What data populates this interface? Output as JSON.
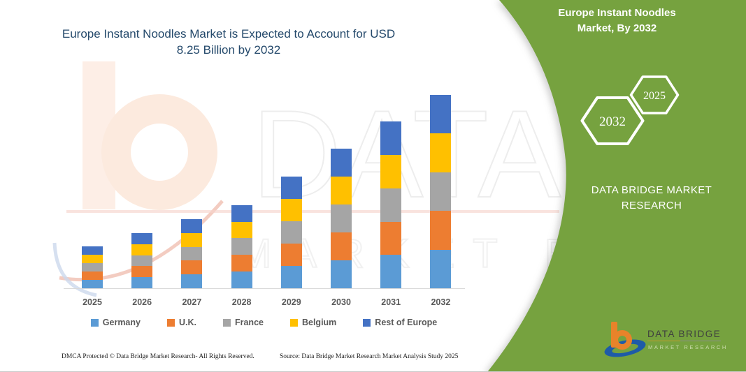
{
  "card": {
    "title": "Europe Instant Noodles Market is Expected to Account for USD 8.25 Billion by 2032",
    "footer_left": "DMCA Protected © Data Bridge Market Research-  All Rights Reserved.",
    "footer_source": "Source: Data Bridge Market Research  Market Analysis Study 2025"
  },
  "watermark": {
    "line1": "DATA BRIDGE",
    "line2": "MARKET RESEARCH"
  },
  "side_panel": {
    "title": "Europe Instant Noodles Market, By 2032",
    "hexagons": [
      {
        "label": "2032"
      },
      {
        "label": "2025"
      }
    ],
    "brand": "DATA BRIDGE MARKET RESEARCH",
    "bg_color": "#76A23F"
  },
  "logo": {
    "name": "DATA BRIDGE",
    "subtext": "MARKET RESEARCH",
    "orange": "#E8832A",
    "blue": "#1E5BA8"
  },
  "chart_data": {
    "type": "bar",
    "stacked": true,
    "title": "Europe Instant Noodles Market is Expected to Account for USD 8.25 Billion by 2032",
    "unit": "USD Billion (estimated from bar heights; no y-axis shown)",
    "categories": [
      "2025",
      "2026",
      "2027",
      "2028",
      "2029",
      "2030",
      "2031",
      "2032"
    ],
    "series": [
      {
        "name": "Germany",
        "color": "#5B9BD5",
        "values": [
          0.36,
          0.47,
          0.59,
          0.71,
          0.95,
          1.19,
          1.42,
          1.65
        ]
      },
      {
        "name": "U.K.",
        "color": "#ED7D31",
        "values": [
          0.36,
          0.47,
          0.59,
          0.71,
          0.95,
          1.19,
          1.42,
          1.65
        ]
      },
      {
        "name": "France",
        "color": "#A5A5A5",
        "values": [
          0.36,
          0.47,
          0.59,
          0.71,
          0.95,
          1.19,
          1.42,
          1.65
        ]
      },
      {
        "name": "Belgium",
        "color": "#FFC000",
        "values": [
          0.36,
          0.47,
          0.59,
          0.71,
          0.95,
          1.19,
          1.42,
          1.65
        ]
      },
      {
        "name": "Rest of Europe",
        "color": "#4472C4",
        "values": [
          0.36,
          0.47,
          0.59,
          0.71,
          0.95,
          1.19,
          1.42,
          1.65
        ]
      }
    ],
    "totals": [
      1.8,
      2.35,
      2.95,
      3.55,
      4.75,
      5.95,
      7.1,
      8.25
    ],
    "ylim": [
      0,
      8.8
    ],
    "grid": false,
    "y_axis_shown": false,
    "legend_position": "bottom"
  }
}
